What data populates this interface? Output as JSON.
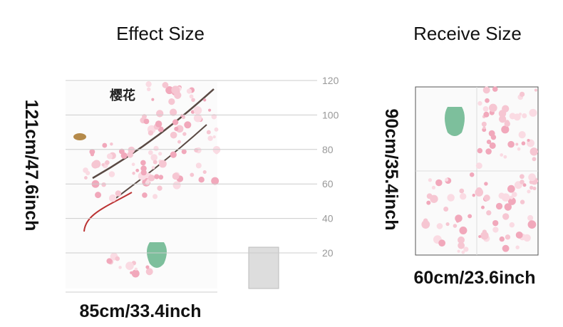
{
  "left": {
    "title": "Effect Size",
    "height_label": "121cm/47.6inch",
    "width_label": "85cm/33.4inch",
    "ruler": [
      "120",
      "100",
      "80",
      "60",
      "40",
      "20"
    ],
    "poem_title": "樱花"
  },
  "right": {
    "title": "Receive Size",
    "height_label": "90cm/35.4inch",
    "width_label": "60cm/23.6inch"
  }
}
